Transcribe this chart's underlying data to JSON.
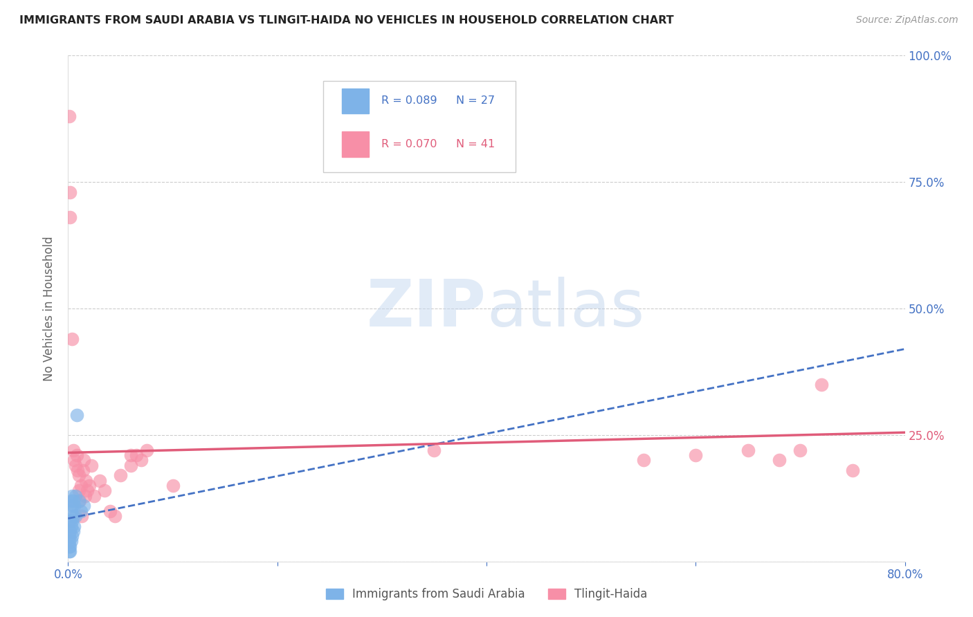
{
  "title": "IMMIGRANTS FROM SAUDI ARABIA VS TLINGIT-HAIDA NO VEHICLES IN HOUSEHOLD CORRELATION CHART",
  "source": "Source: ZipAtlas.com",
  "ylabel_label": "No Vehicles in Household",
  "legend_label_blue": "Immigrants from Saudi Arabia",
  "legend_label_pink": "Tlingit-Haida",
  "legend_R_blue": "R = 0.089",
  "legend_N_blue": "N = 27",
  "legend_R_pink": "R = 0.070",
  "legend_N_pink": "N = 41",
  "xlim": [
    0.0,
    0.8
  ],
  "ylim": [
    0.0,
    1.0
  ],
  "xticks": [
    0.0,
    0.8
  ],
  "xtick_labels": [
    "0.0%",
    "80.0%"
  ],
  "yticks": [
    0.0,
    0.25,
    0.5,
    0.75,
    1.0
  ],
  "ytick_labels": [
    "",
    "25.0%",
    "50.0%",
    "75.0%",
    "100.0%"
  ],
  "watermark": "ZIPatlas",
  "blue_scatter": [
    [
      0.001,
      0.02
    ],
    [
      0.001,
      0.03
    ],
    [
      0.001,
      0.04
    ],
    [
      0.001,
      0.05
    ],
    [
      0.002,
      0.02
    ],
    [
      0.002,
      0.03
    ],
    [
      0.002,
      0.06
    ],
    [
      0.002,
      0.08
    ],
    [
      0.003,
      0.04
    ],
    [
      0.003,
      0.07
    ],
    [
      0.003,
      0.1
    ],
    [
      0.003,
      0.12
    ],
    [
      0.004,
      0.05
    ],
    [
      0.004,
      0.08
    ],
    [
      0.004,
      0.11
    ],
    [
      0.004,
      0.13
    ],
    [
      0.005,
      0.06
    ],
    [
      0.005,
      0.09
    ],
    [
      0.005,
      0.12
    ],
    [
      0.006,
      0.07
    ],
    [
      0.006,
      0.11
    ],
    [
      0.007,
      0.09
    ],
    [
      0.007,
      0.13
    ],
    [
      0.008,
      0.29
    ],
    [
      0.01,
      0.12
    ],
    [
      0.012,
      0.1
    ],
    [
      0.015,
      0.11
    ]
  ],
  "pink_scatter": [
    [
      0.001,
      0.88
    ],
    [
      0.002,
      0.73
    ],
    [
      0.002,
      0.68
    ],
    [
      0.004,
      0.44
    ],
    [
      0.005,
      0.22
    ],
    [
      0.006,
      0.2
    ],
    [
      0.007,
      0.19
    ],
    [
      0.008,
      0.21
    ],
    [
      0.009,
      0.18
    ],
    [
      0.01,
      0.17
    ],
    [
      0.01,
      0.14
    ],
    [
      0.011,
      0.12
    ],
    [
      0.012,
      0.15
    ],
    [
      0.013,
      0.09
    ],
    [
      0.014,
      0.18
    ],
    [
      0.015,
      0.2
    ],
    [
      0.016,
      0.13
    ],
    [
      0.017,
      0.16
    ],
    [
      0.018,
      0.14
    ],
    [
      0.02,
      0.15
    ],
    [
      0.022,
      0.19
    ],
    [
      0.025,
      0.13
    ],
    [
      0.03,
      0.16
    ],
    [
      0.035,
      0.14
    ],
    [
      0.04,
      0.1
    ],
    [
      0.045,
      0.09
    ],
    [
      0.05,
      0.17
    ],
    [
      0.06,
      0.21
    ],
    [
      0.06,
      0.19
    ],
    [
      0.065,
      0.21
    ],
    [
      0.07,
      0.2
    ],
    [
      0.075,
      0.22
    ],
    [
      0.1,
      0.15
    ],
    [
      0.35,
      0.22
    ],
    [
      0.55,
      0.2
    ],
    [
      0.6,
      0.21
    ],
    [
      0.65,
      0.22
    ],
    [
      0.68,
      0.2
    ],
    [
      0.7,
      0.22
    ],
    [
      0.72,
      0.35
    ],
    [
      0.75,
      0.18
    ]
  ],
  "blue_line_x": [
    0.0,
    0.8
  ],
  "blue_line_y": [
    0.085,
    0.42
  ],
  "pink_line_x": [
    0.0,
    0.8
  ],
  "pink_line_y": [
    0.215,
    0.255
  ],
  "title_color": "#222222",
  "source_color": "#999999",
  "axis_color": "#4472c4",
  "grid_color": "#cccccc",
  "blue_dot_color": "#7eb3e8",
  "pink_dot_color": "#f78fa7",
  "blue_line_color": "#4472c4",
  "pink_line_color": "#e05c7a",
  "pink_tick_color": "#e05c7a",
  "background_color": "#ffffff"
}
